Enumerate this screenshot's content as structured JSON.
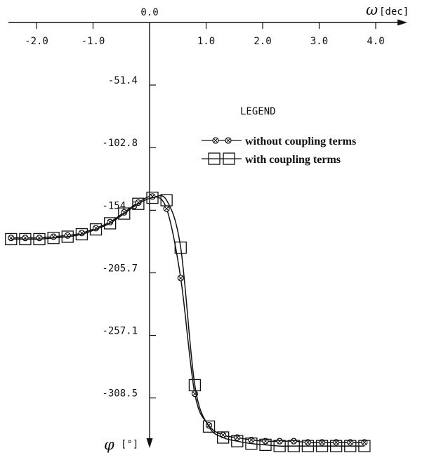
{
  "chart_data": {
    "type": "line",
    "x_axis": {
      "symbol": "ω",
      "unit": "[dec]",
      "ticks": [
        "-2.0",
        "-1.0",
        "0.0",
        "1.0",
        "2.0",
        "3.0",
        "4.0"
      ],
      "range": [
        -2.55,
        4.0
      ]
    },
    "y_axis": {
      "symbol": "φ",
      "unit": "[°]",
      "ticks": [
        "-51.4",
        "-102.8",
        "-154.3",
        "-205.7",
        "-257.1",
        "-308.5"
      ],
      "range": [
        -350,
        0
      ]
    },
    "legend": {
      "title": "LEGEND",
      "position": "top-right",
      "entries": [
        {
          "label": "without coupling terms",
          "marker": "circle-x"
        },
        {
          "label": "with coupling terms",
          "marker": "square"
        }
      ]
    },
    "grid": false,
    "series": [
      {
        "name": "without coupling terms",
        "marker": "circle-x",
        "x": [
          -2.45,
          -2.2,
          -1.95,
          -1.7,
          -1.45,
          -1.2,
          -0.95,
          -0.7,
          -0.45,
          -0.2,
          0.05,
          0.3,
          0.55,
          0.8,
          1.05,
          1.3,
          1.55,
          1.8,
          2.05,
          2.3,
          2.55,
          2.8,
          3.05,
          3.3,
          3.55,
          3.8
        ],
        "y": [
          -177,
          -177,
          -177,
          -176,
          -175,
          -173,
          -169,
          -164,
          -156,
          -148,
          -143,
          -153,
          -210,
          -305,
          -331,
          -339,
          -341,
          -343,
          -344,
          -344,
          -344,
          -345,
          -345,
          -345,
          -345,
          -345
        ]
      },
      {
        "name": "with coupling terms",
        "marker": "square",
        "x": [
          -2.45,
          -2.2,
          -1.95,
          -1.7,
          -1.45,
          -1.2,
          -0.95,
          -0.7,
          -0.45,
          -0.2,
          0.05,
          0.3,
          0.55,
          0.8,
          1.05,
          1.3,
          1.55,
          1.8,
          2.05,
          2.3,
          2.55,
          2.8,
          3.05,
          3.3,
          3.55,
          3.8
        ],
        "y": [
          -178,
          -178,
          -178,
          -177,
          -176,
          -174,
          -170,
          -165,
          -157,
          -149,
          -144,
          -146,
          -185,
          -298,
          -332,
          -341,
          -344,
          -346,
          -347,
          -348,
          -348,
          -348,
          -348,
          -348,
          -348,
          -348
        ]
      }
    ]
  }
}
